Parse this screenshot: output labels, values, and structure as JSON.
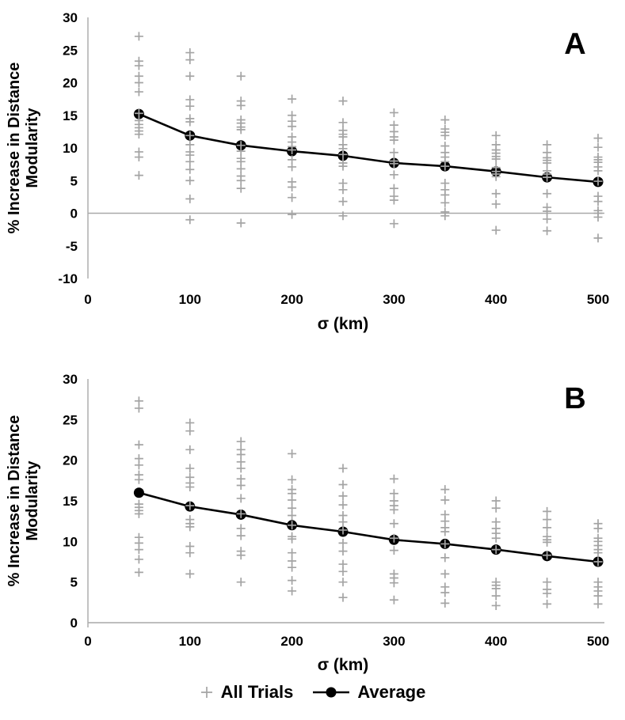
{
  "legend": {
    "all_trials_label": "All Trials",
    "average_label": "Average"
  },
  "colors": {
    "trials": "#a4a4a4",
    "average": "#000000",
    "axis": "#a9a9a9",
    "text": "#000000"
  },
  "chart_data": [
    {
      "type": "scatter",
      "panel_label": "A",
      "xlabel": "σ (km)",
      "ylabel": [
        "% Increase in Distance",
        "Modularity"
      ],
      "xlim": [
        0,
        500
      ],
      "ylim": [
        -10,
        30
      ],
      "xticks": [
        0,
        100,
        200,
        300,
        400,
        500
      ],
      "yticks": [
        -10,
        -5,
        0,
        5,
        10,
        15,
        20,
        25,
        30
      ],
      "zero_line": true,
      "sigma": [
        50,
        100,
        150,
        200,
        250,
        300,
        350,
        400,
        450,
        500
      ],
      "series": [
        {
          "name": "All Trials",
          "marker": "plus",
          "points_by_sigma": [
            [
              27.1,
              23.3,
              22.6,
              21.0,
              20.0,
              18.6,
              15.3,
              14.2,
              13.6,
              13.1,
              12.6,
              12.1,
              9.4,
              8.6,
              5.8
            ],
            [
              24.6,
              23.5,
              21.0,
              17.4,
              16.4,
              14.5,
              14.0,
              11.9,
              10.5,
              9.4,
              8.9,
              7.9,
              6.7,
              5.0,
              2.2,
              -1.0
            ],
            [
              21.0,
              17.2,
              16.5,
              14.3,
              13.8,
              13.2,
              12.8,
              10.4,
              9.5,
              8.4,
              7.9,
              6.8,
              5.7,
              5.0,
              3.8,
              -1.5
            ],
            [
              17.5,
              15.0,
              14.1,
              13.3,
              11.7,
              10.9,
              10.2,
              9.7,
              8.2,
              7.1,
              4.8,
              4.0,
              2.4,
              -0.2
            ],
            [
              17.2,
              13.9,
              12.7,
              12.1,
              11.7,
              10.5,
              9.9,
              9.0,
              7.7,
              7.2,
              4.6,
              3.6,
              1.8,
              -0.4
            ],
            [
              15.4,
              13.5,
              12.5,
              11.7,
              11.2,
              9.3,
              8.0,
              7.6,
              5.9,
              3.8,
              2.6,
              2.0,
              -1.6
            ],
            [
              14.3,
              12.9,
              12.4,
              11.9,
              10.3,
              9.3,
              8.6,
              7.9,
              7.2,
              4.6,
              3.6,
              2.8,
              1.6,
              0.2,
              -0.4
            ],
            [
              11.9,
              10.5,
              9.7,
              9.2,
              8.7,
              8.3,
              7.0,
              6.4,
              6.0,
              5.6,
              3.0,
              1.4,
              -2.6
            ],
            [
              10.5,
              9.3,
              8.5,
              8.1,
              7.7,
              6.5,
              6.0,
              5.5,
              3.0,
              0.9,
              0.3,
              -0.9,
              -2.7
            ],
            [
              11.5,
              10.1,
              8.6,
              8.2,
              7.8,
              7.1,
              6.5,
              4.9,
              2.6,
              1.8,
              0.4,
              0.0,
              -0.6,
              -3.8
            ]
          ]
        },
        {
          "name": "Average",
          "marker": "circle-line",
          "values": [
            15.2,
            11.9,
            10.4,
            9.5,
            8.8,
            7.7,
            7.2,
            6.4,
            5.5,
            4.8
          ]
        }
      ]
    },
    {
      "type": "scatter",
      "panel_label": "B",
      "xlabel": "σ (km)",
      "ylabel": [
        "% Increase in Distance",
        "Modularity"
      ],
      "xlim": [
        0,
        500
      ],
      "ylim": [
        0,
        30
      ],
      "xticks": [
        0,
        100,
        200,
        300,
        400,
        500
      ],
      "yticks": [
        0,
        5,
        10,
        15,
        20,
        25,
        30
      ],
      "zero_line": true,
      "sigma": [
        50,
        100,
        150,
        200,
        250,
        300,
        350,
        400,
        450,
        500
      ],
      "series": [
        {
          "name": "All Trials",
          "marker": "plus",
          "points_by_sigma": [
            [
              27.3,
              26.4,
              21.9,
              20.2,
              19.4,
              18.2,
              17.6,
              14.6,
              14.2,
              13.8,
              13.4,
              10.5,
              9.8,
              9.0,
              7.8,
              6.2
            ],
            [
              24.6,
              23.6,
              21.3,
              19.0,
              17.9,
              17.2,
              16.7,
              14.4,
              12.7,
              12.2,
              11.8,
              9.4,
              8.6,
              6.0
            ],
            [
              22.3,
              21.3,
              20.7,
              19.8,
              19.0,
              17.7,
              16.9,
              15.3,
              13.4,
              11.6,
              10.7,
              8.8,
              8.3,
              5.0
            ],
            [
              20.8,
              17.6,
              16.4,
              15.9,
              15.1,
              14.1,
              13.2,
              12.0,
              10.6,
              10.3,
              8.6,
              7.6,
              6.8,
              5.2,
              3.9
            ],
            [
              19.0,
              17.0,
              15.6,
              14.5,
              13.2,
              12.4,
              11.4,
              9.8,
              8.8,
              7.2,
              6.3,
              5.0,
              3.1
            ],
            [
              17.7,
              15.9,
              15.0,
              14.4,
              13.9,
              12.2,
              10.4,
              8.9,
              6.0,
              5.5,
              4.9,
              2.8
            ],
            [
              16.4,
              15.1,
              13.3,
              12.5,
              11.7,
              11.2,
              9.7,
              8.0,
              6.0,
              4.4,
              3.7,
              2.4
            ],
            [
              15.0,
              14.1,
              12.4,
              11.6,
              11.0,
              10.4,
              9.0,
              5.0,
              4.6,
              4.2,
              3.3,
              2.1
            ],
            [
              13.7,
              12.7,
              11.7,
              10.6,
              10.2,
              9.9,
              8.3,
              5.0,
              4.1,
              3.6,
              2.3
            ],
            [
              12.2,
              11.6,
              10.4,
              10.0,
              9.5,
              9.0,
              8.6,
              7.5,
              5.0,
              4.4,
              3.9,
              3.3,
              2.3
            ]
          ]
        },
        {
          "name": "Average",
          "marker": "circle-line",
          "values": [
            16.0,
            14.3,
            13.3,
            12.0,
            11.2,
            10.2,
            9.7,
            9.0,
            8.2,
            7.5
          ]
        }
      ]
    }
  ]
}
